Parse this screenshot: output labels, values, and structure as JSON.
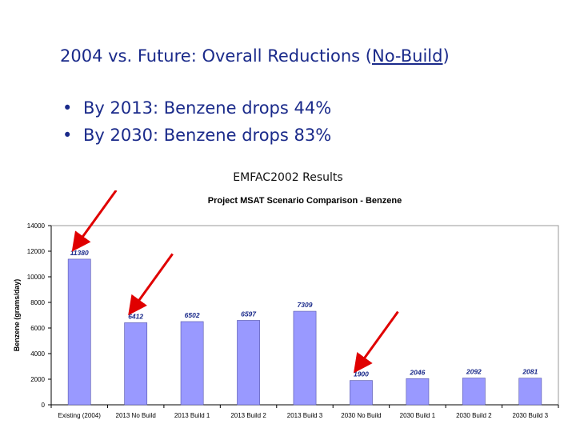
{
  "slide": {
    "title_prefix": "2004 vs. Future:  Overall Reductions (",
    "title_underlined": "No-Build",
    "title_suffix": ")",
    "bullets": [
      "By 2013:  Benzene drops 44%",
      "By 2030:  Benzene drops 83%"
    ],
    "caption": "EMFAC2002 Results"
  },
  "colors": {
    "title": "#1a2a8a",
    "bar_fill": "#9999ff",
    "bar_stroke": "#5555aa",
    "label": "#1a2a8a",
    "arrow": "#e00000",
    "plot_border": "#999999"
  },
  "chart_data": {
    "type": "bar",
    "title": "Project MSAT Scenario Comparison - Benzene",
    "xlabel": "",
    "ylabel": "Benzene (grams/day)",
    "ylim": [
      0,
      14000
    ],
    "yticks": [
      0,
      2000,
      4000,
      6000,
      8000,
      10000,
      12000,
      14000
    ],
    "grid": false,
    "categories": [
      "Existing (2004)",
      "2013 No Build",
      "2013 Build 1",
      "2013 Build 2",
      "2013 Build 3",
      "2030 No Build",
      "2030 Build 1",
      "2030 Build 2",
      "2030 Build 3"
    ],
    "values": [
      11380,
      6412,
      6502,
      6597,
      7309,
      1900,
      2046,
      2092,
      2081
    ],
    "annotations": [
      {
        "type": "arrow",
        "target": "Existing (2004)"
      },
      {
        "type": "arrow",
        "target": "2013 No Build"
      },
      {
        "type": "arrow",
        "target": "2030 No Build"
      }
    ]
  }
}
